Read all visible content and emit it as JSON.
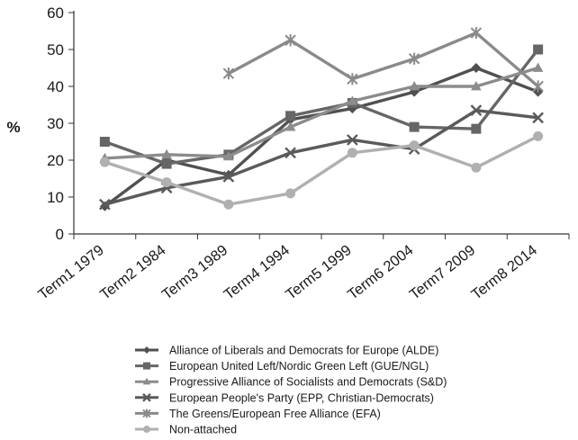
{
  "chart_data": {
    "type": "line",
    "title": "",
    "xlabel": "",
    "ylabel": "%",
    "ylim": [
      0,
      60
    ],
    "yticks": [
      0,
      10,
      20,
      30,
      40,
      50,
      60
    ],
    "grid": false,
    "legend_position": "bottom",
    "categories": [
      "Term1 1979",
      "Term2 1984",
      "Term3 1989",
      "Term4 1994",
      "Term5 1999",
      "Term6 2004",
      "Term7 2009",
      "Term8 2014"
    ],
    "series": [
      {
        "name": "Alliance of Liberals and Democrats for Europe (ALDE)",
        "marker": "diamond",
        "color": "#505050",
        "values": [
          7.5,
          20,
          16,
          31,
          34,
          38.5,
          45,
          38.5
        ]
      },
      {
        "name": "European United Left/Nordic Green Left (GUE/NGL)",
        "marker": "square",
        "color": "#666666",
        "values": [
          25,
          19,
          21.5,
          32,
          35.5,
          29,
          28.5,
          50
        ]
      },
      {
        "name": "Progressive Alliance of Socialists and Democrats (S&D)",
        "marker": "triangle",
        "color": "#8c8c8c",
        "values": [
          20.5,
          21.5,
          21,
          29,
          36,
          40,
          40,
          45
        ]
      },
      {
        "name": "European People's Party (EPP, Christian-Democrats)",
        "marker": "x",
        "color": "#5a5a5a",
        "values": [
          8,
          12.5,
          15.5,
          22,
          25.5,
          23,
          33.5,
          31.5
        ]
      },
      {
        "name": "The Greens/European Free Alliance (EFA)",
        "marker": "star",
        "color": "#8a8a8a",
        "values": [
          null,
          null,
          43.5,
          52.5,
          42,
          47.5,
          54.5,
          40
        ]
      },
      {
        "name": "Non-attached",
        "marker": "circle",
        "color": "#b0b0b0",
        "values": [
          19.5,
          14,
          8,
          11,
          22,
          24,
          18,
          26.5
        ]
      }
    ]
  }
}
